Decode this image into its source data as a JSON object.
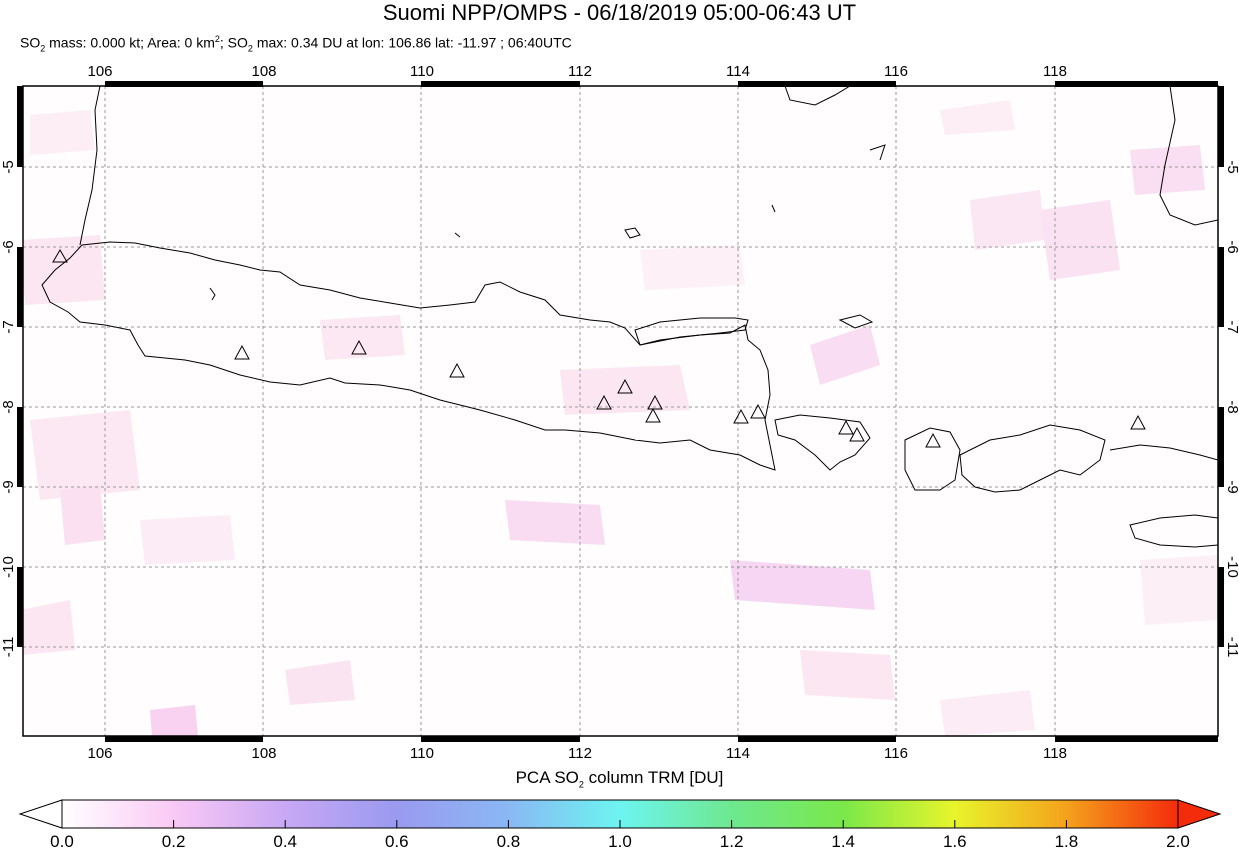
{
  "title": "Suomi NPP/OMPS - 06/18/2019 05:00-06:43 UT",
  "subtitle": {
    "so2_label": "SO",
    "so2_sub": "2",
    "mass_text": " mass: 0.000 kt; Area: 0 km",
    "area_sup": "2",
    "sep": "; SO",
    "so2_sub2": "2",
    "max_text": " max: 0.34 DU at lon: 106.86 lat: -11.97 ; 06:40UTC"
  },
  "map": {
    "lon_ticks": [
      "106",
      "108",
      "110",
      "112",
      "114",
      "116",
      "118"
    ],
    "lat_ticks": [
      "-5",
      "-6",
      "-7",
      "-8",
      "-9",
      "-10",
      "-11"
    ],
    "grid": true,
    "volcano_marker": "triangle-icon"
  },
  "colorbar": {
    "title_prefix": "PCA SO",
    "title_sub": "2",
    "title_suffix": " column TRM [DU]",
    "ticks": [
      "0.0",
      "0.2",
      "0.4",
      "0.6",
      "0.8",
      "1.0",
      "1.2",
      "1.4",
      "1.6",
      "1.8",
      "2.0"
    ],
    "range": [
      0.0,
      2.0
    ],
    "colors": [
      "#ffffff",
      "#f9c9f5",
      "#c8a8f4",
      "#9a9af0",
      "#8ab8f4",
      "#6df4f0",
      "#6ee890",
      "#7ae84a",
      "#e8f42c",
      "#f4a21c",
      "#f42c0c"
    ]
  }
}
